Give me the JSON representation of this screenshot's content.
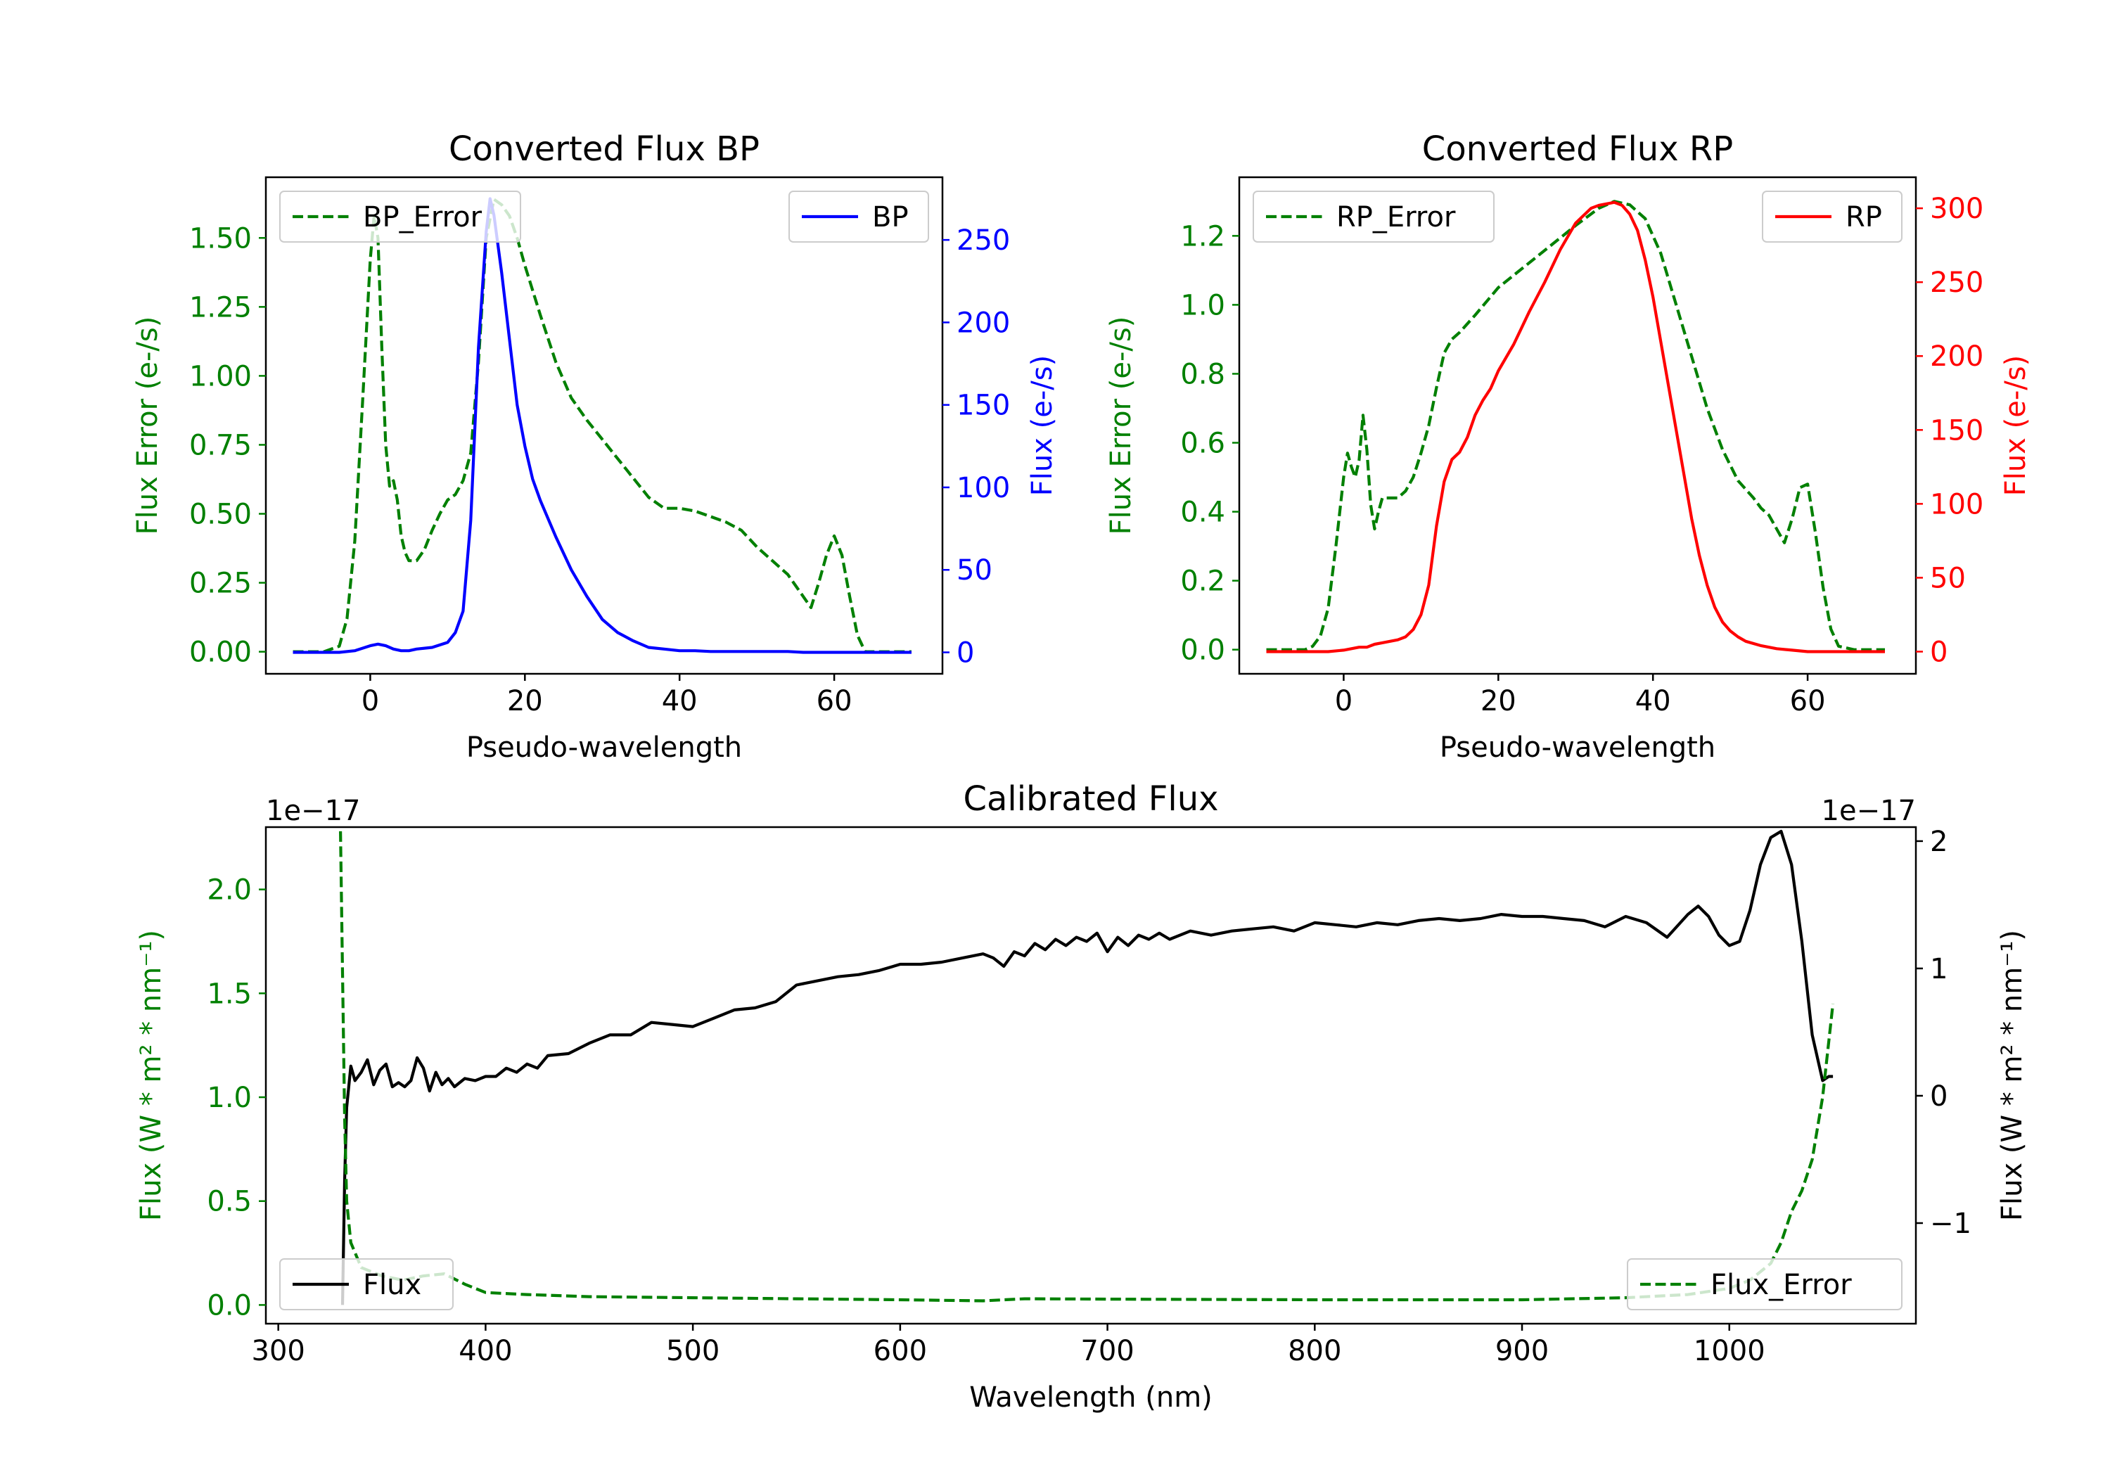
{
  "colors": {
    "bp": "#0000ff",
    "rp": "#ff0000",
    "error": "#008000",
    "flux": "#000000",
    "frame": "#000000",
    "legend_border": "#cccccc",
    "background": "#ffffff"
  },
  "chart_data": [
    {
      "type": "line",
      "title": "Converted Flux BP",
      "xlabel": "Pseudo-wavelength",
      "ylabel_left": "Flux Error (e-/s)",
      "ylabel_right": "Flux (e-/s)",
      "xlim": [
        -13.5,
        74
      ],
      "ylim_left": [
        -0.08,
        1.72
      ],
      "ylim_right": [
        -13,
        288
      ],
      "xticks": [
        "0",
        "20",
        "40",
        "60"
      ],
      "yticks_left": [
        "0.00",
        "0.25",
        "0.50",
        "0.75",
        "1.00",
        "1.25",
        "1.50"
      ],
      "yticks_right": [
        "0",
        "50",
        "100",
        "150",
        "200",
        "250"
      ],
      "legend_left": "BP_Error",
      "legend_right": "BP",
      "series_error": {
        "name": "BP_Error",
        "style": "dashed",
        "axis": "left",
        "x": [
          -10,
          -6,
          -4,
          -3,
          -2,
          -1,
          0,
          0.5,
          1,
          1.5,
          2,
          2.5,
          3,
          3.5,
          4,
          4.5,
          5,
          6,
          7,
          8,
          9,
          10,
          11,
          12,
          13,
          14,
          15,
          16,
          17,
          18,
          19,
          20,
          22,
          24,
          26,
          28,
          30,
          32,
          34,
          36,
          38,
          40,
          42,
          44,
          46,
          48,
          50,
          52,
          54,
          55,
          56,
          57,
          58,
          59,
          60,
          61,
          62,
          63,
          64,
          66,
          68,
          70
        ],
        "y": [
          0,
          0,
          0.02,
          0.12,
          0.4,
          0.9,
          1.42,
          1.58,
          1.5,
          1.1,
          0.75,
          0.6,
          0.62,
          0.55,
          0.42,
          0.36,
          0.33,
          0.33,
          0.37,
          0.44,
          0.5,
          0.55,
          0.57,
          0.62,
          0.72,
          1.05,
          1.5,
          1.64,
          1.62,
          1.58,
          1.5,
          1.4,
          1.22,
          1.05,
          0.92,
          0.84,
          0.77,
          0.7,
          0.63,
          0.56,
          0.52,
          0.52,
          0.51,
          0.49,
          0.47,
          0.44,
          0.38,
          0.33,
          0.28,
          0.24,
          0.2,
          0.16,
          0.25,
          0.35,
          0.42,
          0.35,
          0.2,
          0.06,
          0,
          0,
          0,
          0
        ]
      },
      "series_flux": {
        "name": "BP",
        "style": "solid",
        "axis": "right",
        "x": [
          -10,
          -6,
          -4,
          -2,
          0,
          1,
          2,
          3,
          4,
          5,
          6,
          8,
          10,
          11,
          12,
          13,
          14,
          15,
          15.5,
          16,
          17,
          18,
          19,
          20,
          21,
          22,
          24,
          26,
          28,
          30,
          32,
          34,
          36,
          38,
          40,
          42,
          44,
          46,
          48,
          50,
          52,
          54,
          56,
          58,
          60,
          62,
          64,
          66,
          68,
          70
        ],
        "y": [
          0,
          0,
          0,
          1,
          4,
          5,
          4,
          2,
          1,
          1,
          2,
          3,
          6,
          12,
          25,
          80,
          185,
          255,
          275,
          265,
          230,
          190,
          150,
          125,
          105,
          92,
          70,
          50,
          34,
          20,
          12,
          7,
          3,
          2,
          1,
          1,
          0.5,
          0.5,
          0.5,
          0.5,
          0.5,
          0.5,
          0,
          0,
          0,
          0,
          0,
          0,
          0,
          0
        ]
      }
    },
    {
      "type": "line",
      "title": "Converted Flux RP",
      "xlabel": "Pseudo-wavelength",
      "ylabel_left": "Flux Error (e-/s)",
      "ylabel_right": "Flux (e-/s)",
      "xlim": [
        -13.5,
        74
      ],
      "ylim_left": [
        -0.07,
        1.37
      ],
      "ylim_right": [
        -15,
        321
      ],
      "xticks": [
        "0",
        "20",
        "40",
        "60"
      ],
      "yticks_left": [
        "0.0",
        "0.2",
        "0.4",
        "0.6",
        "0.8",
        "1.0",
        "1.2"
      ],
      "yticks_right": [
        "0",
        "50",
        "100",
        "150",
        "200",
        "250",
        "300"
      ],
      "legend_left": "RP_Error",
      "legend_right": "RP",
      "series_error": {
        "name": "RP_Error",
        "style": "dashed",
        "axis": "left",
        "x": [
          -10,
          -5,
          -4,
          -3,
          -2,
          -1,
          0,
          0.5,
          1,
          1.5,
          2,
          2.5,
          3,
          3.5,
          4,
          4.5,
          5,
          6,
          7,
          8,
          9,
          10,
          11,
          12,
          13,
          14,
          15,
          17,
          20,
          25,
          30,
          33,
          35,
          37,
          39,
          41,
          43,
          45,
          47,
          49,
          51,
          53,
          54,
          55,
          56,
          57,
          58,
          59,
          60,
          61,
          62,
          63,
          64,
          66,
          70
        ],
        "y": [
          0,
          0,
          0.01,
          0.04,
          0.12,
          0.3,
          0.5,
          0.57,
          0.53,
          0.5,
          0.55,
          0.68,
          0.58,
          0.42,
          0.35,
          0.4,
          0.44,
          0.44,
          0.44,
          0.46,
          0.5,
          0.57,
          0.65,
          0.76,
          0.86,
          0.9,
          0.92,
          0.97,
          1.05,
          1.14,
          1.23,
          1.28,
          1.3,
          1.29,
          1.25,
          1.15,
          1.0,
          0.85,
          0.7,
          0.58,
          0.49,
          0.44,
          0.41,
          0.39,
          0.35,
          0.31,
          0.38,
          0.47,
          0.48,
          0.34,
          0.18,
          0.06,
          0.01,
          0,
          0
        ]
      },
      "series_flux": {
        "name": "RP",
        "style": "solid",
        "axis": "right",
        "x": [
          -10,
          -4,
          -2,
          0,
          1,
          2,
          3,
          4,
          5,
          6,
          7,
          8,
          9,
          10,
          11,
          12,
          13,
          14,
          15,
          16,
          17,
          18,
          19,
          20,
          22,
          24,
          26,
          28,
          30,
          32,
          33,
          34,
          35,
          36,
          37,
          38,
          39,
          40,
          41,
          42,
          43,
          44,
          45,
          46,
          47,
          48,
          49,
          50,
          51,
          52,
          54,
          56,
          58,
          60,
          62,
          64,
          66,
          70
        ],
        "y": [
          0,
          0,
          0,
          1,
          2,
          3,
          3,
          5,
          6,
          7,
          8,
          10,
          15,
          25,
          45,
          85,
          115,
          130,
          135,
          145,
          160,
          170,
          178,
          190,
          208,
          230,
          250,
          272,
          290,
          300,
          302,
          303,
          304,
          302,
          296,
          285,
          265,
          240,
          210,
          180,
          150,
          120,
          90,
          65,
          45,
          30,
          20,
          14,
          10,
          7,
          4,
          2,
          1,
          0,
          0,
          0,
          0,
          0
        ]
      }
    },
    {
      "type": "line",
      "title": "Calibrated Flux",
      "xlabel": "Wavelength (nm)",
      "ylabel_left": "Flux (W * m² * nm⁻¹)",
      "ylabel_right": "Flux (W * m² * nm⁻¹)",
      "offset_left": "1e−17",
      "offset_right": "1e−17",
      "xlim": [
        294,
        1090
      ],
      "ylim_left": [
        -0.09,
        2.3
      ],
      "ylim_right": [
        -1.79,
        2.11
      ],
      "xticks": [
        "300",
        "400",
        "500",
        "600",
        "700",
        "800",
        "900",
        "1000"
      ],
      "yticks_left": [
        "0.0",
        "0.5",
        "1.0",
        "1.5",
        "2.0"
      ],
      "yticks_right": [
        "−1",
        "0",
        "1",
        "2"
      ],
      "legend_left": "Flux",
      "legend_right": "Flux_Error",
      "series_error": {
        "name": "Flux_Error",
        "style": "dashed",
        "axis": "left",
        "x": [
          330,
          331,
          332,
          333,
          335,
          340,
          350,
          360,
          370,
          380,
          390,
          400,
          420,
          450,
          500,
          550,
          600,
          640,
          660,
          700,
          800,
          900,
          950,
          980,
          1000,
          1010,
          1020,
          1025,
          1030,
          1035,
          1040,
          1045,
          1050
        ],
        "y": [
          2.28,
          1.6,
          0.9,
          0.5,
          0.3,
          0.18,
          0.14,
          0.12,
          0.14,
          0.15,
          0.1,
          0.06,
          0.05,
          0.04,
          0.035,
          0.03,
          0.025,
          0.02,
          0.03,
          0.028,
          0.025,
          0.025,
          0.035,
          0.05,
          0.08,
          0.12,
          0.2,
          0.3,
          0.45,
          0.55,
          0.7,
          1.0,
          1.45
        ]
      },
      "series_flux": {
        "name": "Flux",
        "style": "solid",
        "axis": "left",
        "x": [
          331,
          332,
          333,
          335,
          337,
          340,
          343,
          346,
          349,
          352,
          355,
          358,
          361,
          364,
          367,
          370,
          373,
          376,
          379,
          382,
          385,
          390,
          395,
          400,
          405,
          410,
          415,
          420,
          425,
          430,
          440,
          450,
          460,
          470,
          480,
          490,
          500,
          510,
          520,
          530,
          540,
          550,
          560,
          570,
          580,
          590,
          600,
          610,
          620,
          630,
          640,
          645,
          650,
          655,
          660,
          665,
          670,
          675,
          680,
          685,
          690,
          695,
          700,
          705,
          710,
          715,
          720,
          725,
          730,
          740,
          750,
          760,
          770,
          780,
          790,
          800,
          810,
          820,
          830,
          840,
          850,
          860,
          870,
          880,
          890,
          900,
          910,
          920,
          930,
          940,
          950,
          960,
          970,
          980,
          985,
          990,
          995,
          1000,
          1005,
          1010,
          1015,
          1020,
          1025,
          1030,
          1035,
          1040,
          1045,
          1048,
          1050
        ],
        "y": [
          0.0,
          0.6,
          0.95,
          1.15,
          1.08,
          1.12,
          1.18,
          1.06,
          1.13,
          1.16,
          1.05,
          1.07,
          1.05,
          1.08,
          1.19,
          1.14,
          1.03,
          1.12,
          1.06,
          1.09,
          1.05,
          1.09,
          1.08,
          1.1,
          1.1,
          1.14,
          1.12,
          1.16,
          1.14,
          1.2,
          1.21,
          1.26,
          1.3,
          1.3,
          1.36,
          1.35,
          1.34,
          1.38,
          1.42,
          1.43,
          1.46,
          1.54,
          1.56,
          1.58,
          1.59,
          1.61,
          1.64,
          1.64,
          1.65,
          1.67,
          1.69,
          1.67,
          1.63,
          1.7,
          1.68,
          1.74,
          1.71,
          1.76,
          1.73,
          1.77,
          1.75,
          1.79,
          1.7,
          1.77,
          1.73,
          1.78,
          1.76,
          1.79,
          1.76,
          1.8,
          1.78,
          1.8,
          1.81,
          1.82,
          1.8,
          1.84,
          1.83,
          1.82,
          1.84,
          1.83,
          1.85,
          1.86,
          1.85,
          1.86,
          1.88,
          1.87,
          1.87,
          1.86,
          1.85,
          1.82,
          1.87,
          1.84,
          1.77,
          1.88,
          1.92,
          1.87,
          1.78,
          1.73,
          1.75,
          1.9,
          2.12,
          2.25,
          2.28,
          2.12,
          1.75,
          1.3,
          1.08,
          1.1,
          1.1
        ]
      }
    }
  ]
}
